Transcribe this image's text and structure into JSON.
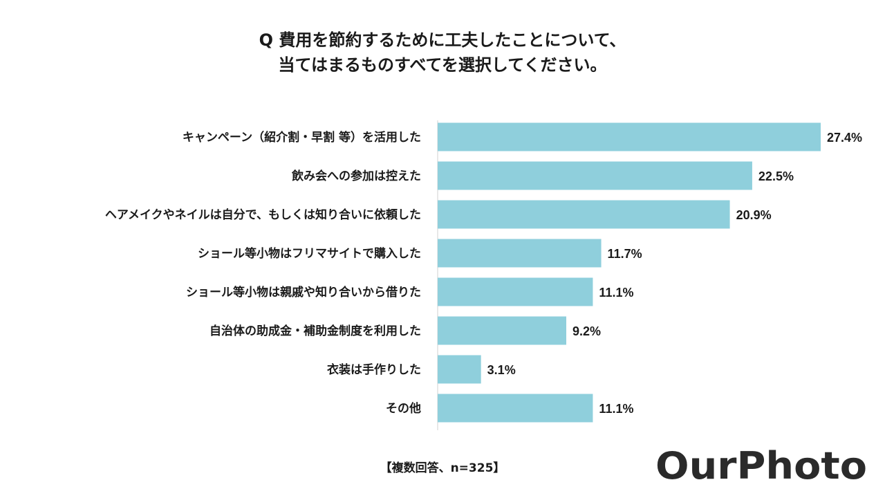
{
  "title": {
    "line1": "Q 費用を節約するために工夫したことについて、",
    "line2": "当てはまるものすべてを選択してください。"
  },
  "chart_data": {
    "type": "bar",
    "orientation": "horizontal",
    "categories": [
      "キャンペーン（紹介割・早割 等）を活用した",
      "飲み会への参加は控えた",
      "ヘアメイクやネイルは自分で、もしくは知り合いに依頼した",
      "ショール等小物はフリマサイトで購入した",
      "ショール等小物は親戚や知り合いから借りた",
      "自治体の助成金・補助金制度を利用した",
      "衣装は手作りした",
      "その他"
    ],
    "values": [
      27.4,
      22.5,
      20.9,
      11.7,
      11.1,
      9.2,
      3.1,
      11.1
    ],
    "value_labels": [
      "27.4%",
      "22.5%",
      "20.9%",
      "11.7%",
      "11.1%",
      "9.2%",
      "3.1%",
      "11.1%"
    ],
    "unit": "%",
    "xlim": [
      0,
      27.4
    ],
    "bar_color": "#8fcfdc",
    "grid": false,
    "legend": "none"
  },
  "note": "【複数回答、n=325】",
  "logo": {
    "text": "OurPhoto",
    "color": "#2a2a2a"
  }
}
